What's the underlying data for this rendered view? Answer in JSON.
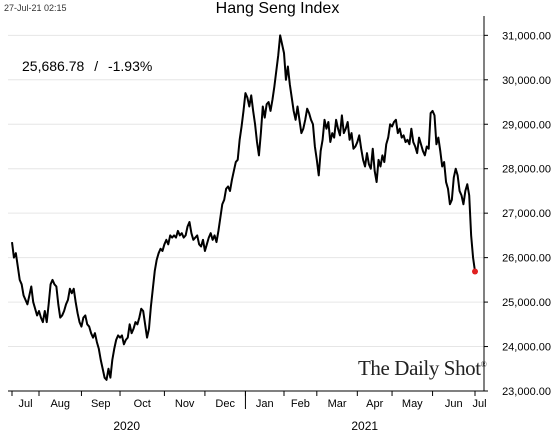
{
  "header": {
    "timestamp": "27-Jul-21 02:15"
  },
  "chart_data": {
    "type": "line",
    "title": "Hang Seng Index",
    "annotation": {
      "last_value": "25,686.78",
      "separator": "/",
      "change": "-1.93%"
    },
    "source_label": "The Daily Shot",
    "source_mark": "®",
    "xlabel": "",
    "ylabel": "",
    "ylim": [
      23000,
      31300
    ],
    "y_ticks": [
      23000,
      24000,
      25000,
      26000,
      27000,
      28000,
      29000,
      30000,
      31000
    ],
    "y_tick_labels": [
      "23,000.00",
      "24,000.00",
      "25,000.00",
      "26,000.00",
      "27,000.00",
      "28,000.00",
      "29,000.00",
      "30,000.00",
      "31,000.00"
    ],
    "month_labels": [
      "Jul",
      "Aug",
      "Sep",
      "Oct",
      "Nov",
      "Dec",
      "Jan",
      "Feb",
      "Mar",
      "Apr",
      "May",
      "Jun",
      "Jul"
    ],
    "year_labels": [
      "2020",
      "2021"
    ],
    "grid": true,
    "last_point_color": "#e02020",
    "line_color": "#000000",
    "series": [
      {
        "values": [
          26350,
          26000,
          26100,
          25800,
          25500,
          25400,
          25150,
          25050,
          24950,
          25150,
          25350,
          25000,
          24850,
          24700,
          24800,
          24650,
          24550,
          24800,
          24550,
          24950,
          25400,
          25500,
          25400,
          25350,
          24950,
          24650,
          24700,
          24800,
          24950,
          25050,
          25300,
          25200,
          25300,
          25000,
          24750,
          24550,
          24450,
          24650,
          24700,
          24500,
          24450,
          24300,
          24200,
          24300,
          24100,
          23950,
          23700,
          23500,
          23300,
          23250,
          23500,
          23300,
          23700,
          23950,
          24150,
          24250,
          24200,
          24250,
          24050,
          24150,
          24200,
          24500,
          24300,
          24400,
          24550,
          24500,
          24650,
          24850,
          24800,
          24500,
          24200,
          24400,
          24900,
          25300,
          25700,
          25950,
          26100,
          26200,
          26150,
          26300,
          26400,
          26300,
          26500,
          26450,
          26500,
          26450,
          26600,
          26500,
          26550,
          26450,
          26500,
          26700,
          26800,
          26550,
          26400,
          26450,
          26500,
          26300,
          26250,
          26400,
          26150,
          26300,
          26450,
          26550,
          26400,
          26500,
          26350,
          26600,
          26900,
          27200,
          27300,
          27550,
          27600,
          27500,
          27750,
          27950,
          28150,
          28200,
          28650,
          28950,
          29300,
          29700,
          29600,
          29400,
          29650,
          29300,
          29000,
          28600,
          28300,
          28800,
          29400,
          29150,
          29450,
          29500,
          29300,
          29550,
          29850,
          30200,
          30550,
          31000,
          30800,
          30600,
          30000,
          30300,
          29900,
          29600,
          29300,
          29100,
          29400,
          29100,
          28800,
          28900,
          29100,
          29350,
          29250,
          29100,
          29000,
          28500,
          28200,
          27850,
          28400,
          28650,
          29100,
          28900,
          29050,
          28600,
          28800,
          28700,
          29100,
          28900,
          28750,
          29200,
          28800,
          28900,
          29050,
          28650,
          28800,
          28450,
          28500,
          28600,
          28750,
          28450,
          28200,
          28050,
          28350,
          28100,
          28000,
          28450,
          27950,
          27700,
          28200,
          28050,
          28300,
          28150,
          28550,
          28700,
          29000,
          28950,
          29050,
          29100,
          28800,
          28900,
          28700,
          28750,
          28600,
          28650,
          28550,
          28900,
          28600,
          28500,
          28350,
          28700,
          28550,
          28400,
          28300,
          28500,
          28450,
          29250,
          29300,
          29200,
          28550,
          28700,
          28400,
          28050,
          28150,
          27700,
          27550,
          27200,
          27300,
          27800,
          28000,
          27850,
          27500,
          27400,
          27200,
          27500,
          27650,
          27400,
          26500,
          26000,
          25686.78
        ]
      }
    ]
  }
}
